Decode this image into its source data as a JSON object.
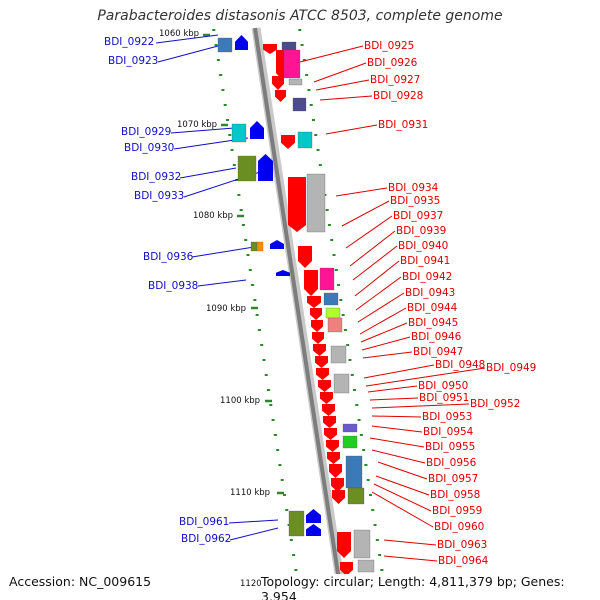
{
  "title": "Parabacteroides distasonis ATCC 8503, complete genome",
  "accession": "Accession: NC_009615",
  "summary": "Topology: circular; Length: 4,811,379 bp; Genes: 3,954",
  "ticks": [
    "1060 kbp",
    "1070 kbp",
    "1080 kbp",
    "1090 kbp",
    "1100 kbp",
    "1110 kbp",
    "1120"
  ],
  "left_genes": [
    "BDI_0922",
    "BDI_0923",
    "BDI_0929",
    "BDI_0930",
    "BDI_0932",
    "BDI_0933",
    "BDI_0936",
    "BDI_0938",
    "BDI_0961",
    "BDI_0962"
  ],
  "right_genes": [
    "BDI_0925",
    "BDI_0926",
    "BDI_0927",
    "BDI_0928",
    "BDI_0931",
    "BDI_0934",
    "BDI_0935",
    "BDI_0937",
    "BDI_0939",
    "BDI_0940",
    "BDI_0941",
    "BDI_0942",
    "BDI_0943",
    "BDI_0944",
    "BDI_0945",
    "BDI_0946",
    "BDI_0947",
    "BDI_0948",
    "BDI_0949",
    "BDI_0950",
    "BDI_0951",
    "BDI_0952",
    "BDI_0953",
    "BDI_0954",
    "BDI_0955",
    "BDI_0956",
    "BDI_0957",
    "BDI_0958",
    "BDI_0959",
    "BDI_0960",
    "BDI_0963",
    "BDI_0964"
  ],
  "colors": {
    "left_label": "#1010c0",
    "right_label": "#dd0000",
    "backbone": "#8a8a8a",
    "tick_dash": "#2a8a2a",
    "gene_red": "#ff0000",
    "gene_blue": "#0000ee",
    "gene_pink": "#ff1493",
    "gene_navy": "#4a4a8c",
    "gene_cyan": "#00c8c8",
    "gene_olive": "#6b8e23",
    "gene_steel": "#3a7ab8",
    "gene_grey": "#b4b4b4",
    "gene_lime": "#adff2f",
    "gene_salmon": "#f08080",
    "gene_orange": "#ff8c00",
    "gene_purple": "#6a5acd",
    "gene_green": "#22cc22"
  }
}
